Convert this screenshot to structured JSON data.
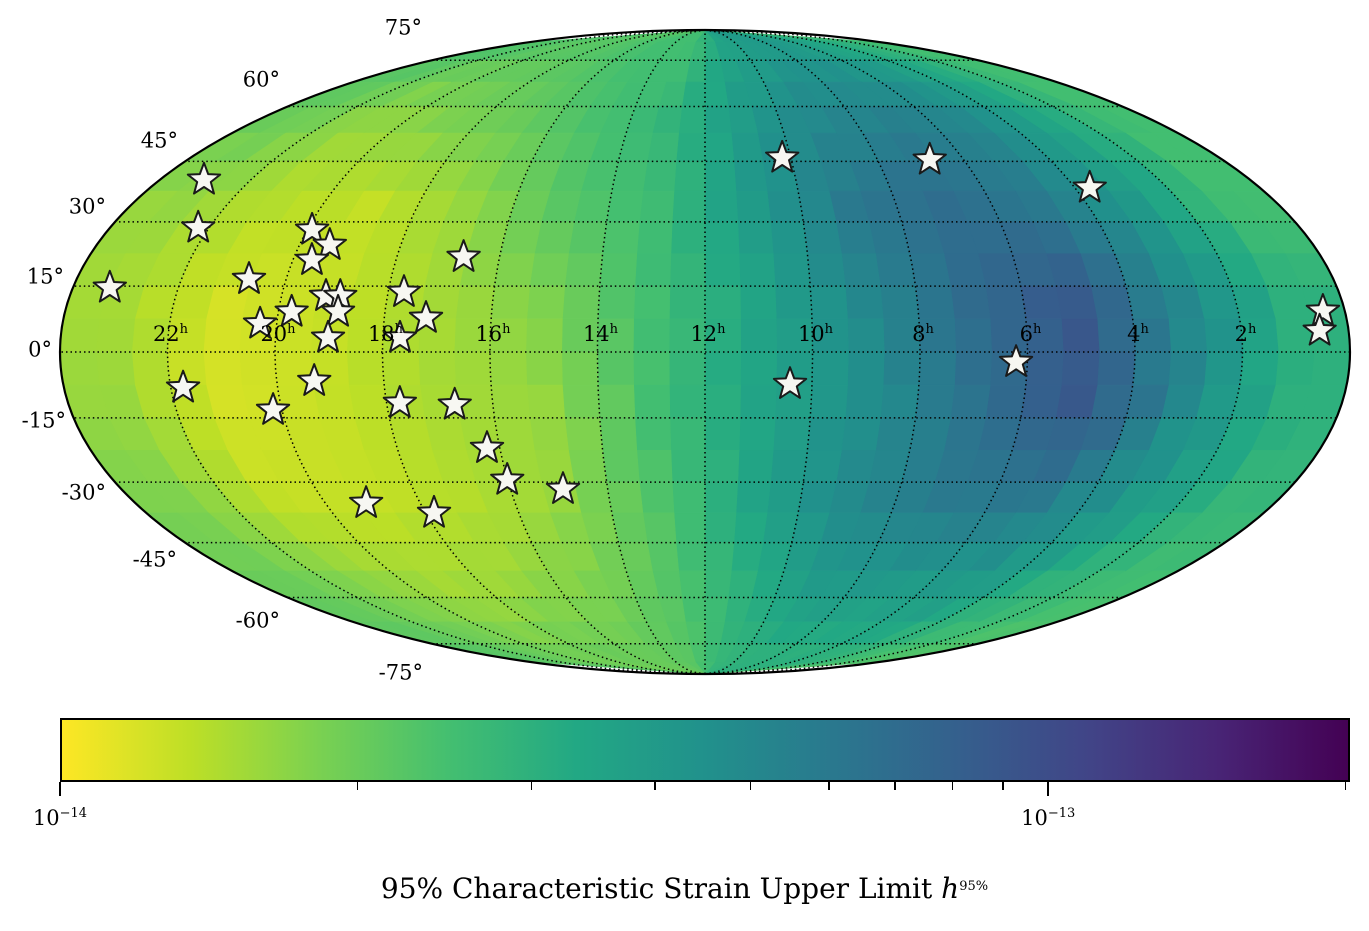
{
  "chart_data": {
    "type": "heatmap",
    "projection": "mollweide",
    "colormap": "viridis_r",
    "color_scale": "log",
    "colorbar": {
      "range": [
        1e-14,
        2.02e-13
      ],
      "tick_labels": [
        {
          "base": "10",
          "exp": "−14",
          "value": 1e-14
        },
        {
          "base": "10",
          "exp": "−13",
          "value": 1e-13
        }
      ],
      "minor_ticks": [
        2e-14,
        3e-14,
        4e-14,
        5e-14,
        6e-14,
        7e-14,
        8e-14,
        9e-14,
        2e-13
      ],
      "label_text": "95% Characteristic Strain Upper Limit ",
      "label_symbol": "h",
      "label_sup": "95%"
    },
    "grid": true,
    "ra_labels": [
      "22",
      "20",
      "18",
      "16",
      "14",
      "12",
      "10",
      "8",
      "6",
      "4",
      "2"
    ],
    "ra_unit": "h",
    "dec_labels": [
      "75°",
      "60°",
      "45°",
      "30°",
      "15°",
      "0°",
      "-15°",
      "-30°",
      "-45°",
      "-60°",
      "-75°"
    ],
    "heatmap": {
      "ra_bin_centers_h": [
        1,
        3,
        5,
        7,
        9,
        11,
        13,
        15,
        17,
        19,
        21,
        23
      ],
      "dec_bin_edges_deg": [
        90,
        67.5,
        45,
        22.5,
        0,
        -22.5,
        -45,
        -67.5,
        -90
      ],
      "values": [
        [
          2.5e-14,
          2.5e-14,
          2.5e-14,
          3e-14,
          3e-14,
          2.8e-14,
          2.5e-14,
          2.3e-14
        ],
        [
          3e-14,
          3.5e-14,
          4e-14,
          5e-14,
          5e-14,
          4e-14,
          3e-14,
          2.5e-14
        ],
        [
          3.5e-14,
          5e-14,
          6e-14,
          9e-14,
          9e-14,
          6e-14,
          4e-14,
          3e-14
        ],
        [
          4e-14,
          5.5e-14,
          7e-14,
          7e-14,
          6.5e-14,
          6e-14,
          4e-14,
          3e-14
        ],
        [
          4e-14,
          5e-14,
          6e-14,
          5e-14,
          4.5e-14,
          5e-14,
          4e-14,
          3e-14
        ],
        [
          3.5e-14,
          4e-14,
          4e-14,
          3.5e-14,
          3.5e-14,
          3.5e-14,
          3e-14,
          2.8e-14
        ],
        [
          2.5e-14,
          2.8e-14,
          2.6e-14,
          2.5e-14,
          2.5e-14,
          2.3e-14,
          2.2e-14,
          2.2e-14
        ],
        [
          2.5e-14,
          2.4e-14,
          2.2e-14,
          1.8e-14,
          1.6e-14,
          1.6e-14,
          1.8e-14,
          2e-14
        ],
        [
          2.3e-14,
          2e-14,
          1.6e-14,
          1.5e-14,
          1.5e-14,
          1.4e-14,
          1.6e-14,
          2e-14
        ],
        [
          2.2e-14,
          1.8e-14,
          1.3e-14,
          1.3e-14,
          1.3e-14,
          1.3e-14,
          1.5e-14,
          1.9e-14
        ],
        [
          2.2e-14,
          1.6e-14,
          1.4e-14,
          1.2e-14,
          1.2e-14,
          1.3e-14,
          1.7e-14,
          2e-14
        ],
        [
          2.3e-14,
          2e-14,
          1.6e-14,
          1.5e-14,
          1.6e-14,
          1.8e-14,
          2e-14,
          2.2e-14
        ]
      ]
    },
    "sources": {
      "marker": "star",
      "fill": "#f7f7f2",
      "edge": "#1a1a1a",
      "points": [
        {
          "ra": 23.03,
          "dec": 40.3
        },
        {
          "ra": 22.22,
          "dec": 28.6
        },
        {
          "ra": 23.3,
          "dec": 14.6
        },
        {
          "ra": 20.71,
          "dec": 16.6
        },
        {
          "ra": 19.9,
          "dec": 28.1
        },
        {
          "ra": 19.4,
          "dec": 24.5
        },
        {
          "ra": 19.63,
          "dec": 21.0
        },
        {
          "ra": 19.75,
          "dec": 9.1
        },
        {
          "ra": 20.31,
          "dec": 6.4
        },
        {
          "ra": 19.16,
          "dec": 12.7
        },
        {
          "ra": 18.89,
          "dec": 12.7
        },
        {
          "ra": 18.88,
          "dec": 9.1
        },
        {
          "ra": 19.02,
          "dec": 3.2
        },
        {
          "ra": 17.7,
          "dec": 13.6
        },
        {
          "ra": 17.22,
          "dec": 7.7
        },
        {
          "ra": 17.68,
          "dec": 3.2
        },
        {
          "ra": 16.7,
          "dec": 21.7
        },
        {
          "ra": 21.77,
          "dec": -8.1
        },
        {
          "ra": 20.17,
          "dec": -13.2
        },
        {
          "ra": 19.3,
          "dec": -6.6
        },
        {
          "ra": 17.75,
          "dec": -11.6
        },
        {
          "ra": 16.72,
          "dec": -12.0
        },
        {
          "ra": 16.25,
          "dec": -22.0
        },
        {
          "ra": 16.01,
          "dec": -29.5
        },
        {
          "ra": 14.92,
          "dec": -31.7
        },
        {
          "ra": 19.14,
          "dec": -35.1
        },
        {
          "ra": 17.82,
          "dec": -37.5
        },
        {
          "ra": 10.2,
          "dec": 45.9
        },
        {
          "ra": 6.79,
          "dec": 45.4
        },
        {
          "ra": 3.68,
          "dec": 38.3
        },
        {
          "ra": 0.41,
          "dec": 9.3
        },
        {
          "ra": 0.54,
          "dec": 4.8
        },
        {
          "ra": 6.21,
          "dec": -2.3
        },
        {
          "ra": 10.41,
          "dec": -7.3
        }
      ]
    }
  }
}
